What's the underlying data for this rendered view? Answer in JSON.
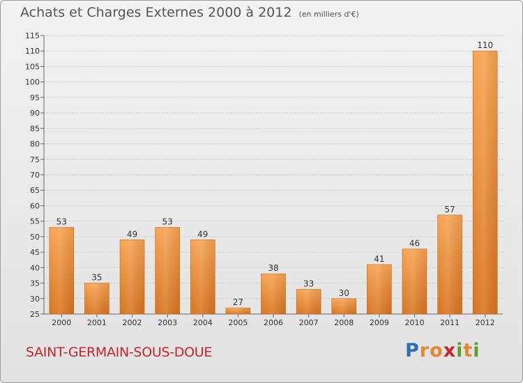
{
  "header": {
    "title": "Achats et Charges Externes 2000 à 2012",
    "unit": "(en milliers d'€)"
  },
  "footer": {
    "commune": "SAINT-GERMAIN-SOUS-DOUE",
    "brand": "Proxiti",
    "brand_letters": [
      {
        "ch": "P",
        "color": "#2d6fb6"
      },
      {
        "ch": "r",
        "color": "#e8872a"
      },
      {
        "ch": "o",
        "color": "#e8872a"
      },
      {
        "ch": "x",
        "color": "#c8252b"
      },
      {
        "ch": "i",
        "color": "#5aa02c"
      },
      {
        "ch": "t",
        "color": "#e8872a"
      },
      {
        "ch": "i",
        "color": "#5aa02c"
      }
    ]
  },
  "chart_data": {
    "type": "bar",
    "categories": [
      "2000",
      "2001",
      "2002",
      "2003",
      "2004",
      "2005",
      "2006",
      "2007",
      "2008",
      "2009",
      "2010",
      "2011",
      "2012"
    ],
    "values": [
      53,
      35,
      49,
      53,
      49,
      27,
      38,
      33,
      30,
      41,
      46,
      57,
      110
    ],
    "data_labels": [
      "53",
      "35",
      "49",
      "53",
      "49",
      "27",
      "38",
      "33",
      "30",
      "41",
      "46",
      "57",
      "110"
    ],
    "ylim": [
      25,
      115
    ],
    "yticks": [
      25,
      30,
      35,
      40,
      45,
      50,
      55,
      60,
      65,
      70,
      75,
      80,
      85,
      90,
      95,
      100,
      105,
      110,
      115
    ],
    "grid": true,
    "bar_color_top": "#f7a352",
    "bar_color_bottom": "#d8741f"
  }
}
